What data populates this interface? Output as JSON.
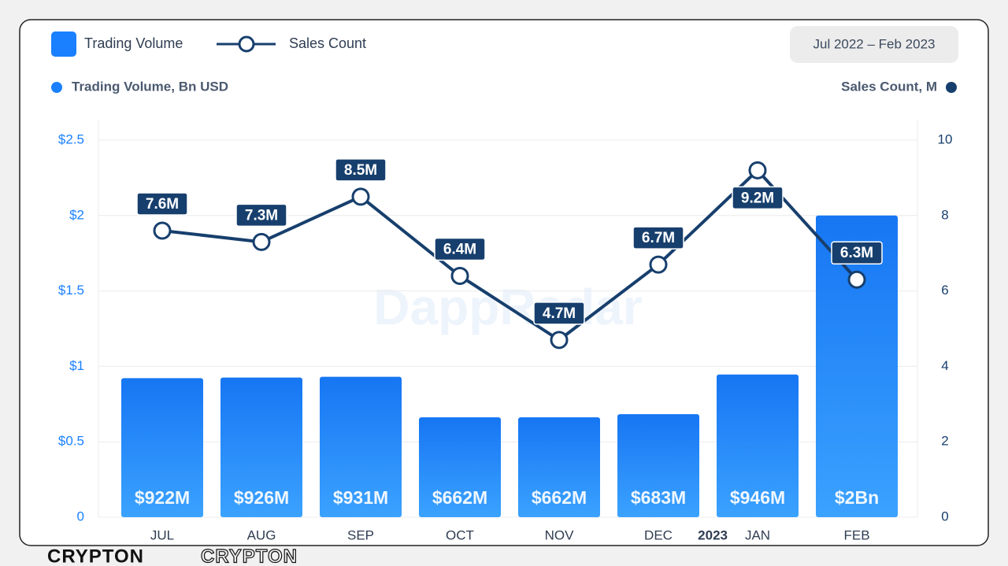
{
  "chart_data": {
    "type": "bar-line",
    "date_range": "Jul 2022 – Feb 2023",
    "y_axis_label": "Trading Volume, Bn USD",
    "y2_axis_label": "Sales Count, M",
    "watermark": "DappRadar",
    "annotation": "2023",
    "brand": "CRYPTON",
    "categories": [
      "JUL",
      "AUG",
      "SEP",
      "OCT",
      "NOV",
      "DEC",
      "JAN",
      "FEB"
    ],
    "series": [
      {
        "name": "Trading Volume",
        "type": "bar",
        "color": "#1a80ff",
        "values": [
          0.922,
          0.926,
          0.931,
          0.662,
          0.662,
          0.683,
          0.946,
          2.0
        ],
        "value_labels": [
          "$922M",
          "$926M",
          "$931M",
          "$662M",
          "$662M",
          "$683M",
          "$946M",
          "$2Bn"
        ]
      },
      {
        "name": "Sales Count",
        "type": "line",
        "axis": "y2",
        "color": "#173f6d",
        "values": [
          7.6,
          7.3,
          8.5,
          6.4,
          4.7,
          6.7,
          9.2,
          6.3
        ],
        "value_labels": [
          "7.6M",
          "7.3M",
          "8.5M",
          "6.4M",
          "4.7M",
          "6.7M",
          "9.2M",
          "6.3M"
        ]
      }
    ],
    "ylim": [
      0,
      2.5
    ],
    "yticks": [
      0,
      {
        "value": 0.5,
        "label": "$0.5"
      },
      {
        "value": 1,
        "label": "$1"
      },
      {
        "value": 1.5,
        "label": "$1.5"
      },
      {
        "value": 2,
        "label": "$2"
      },
      {
        "value": 2.5,
        "label": "$2.5"
      }
    ],
    "y2lim": [
      0,
      10
    ],
    "y2ticks": [
      0,
      2,
      4,
      6,
      8,
      10
    ],
    "grid": true
  }
}
